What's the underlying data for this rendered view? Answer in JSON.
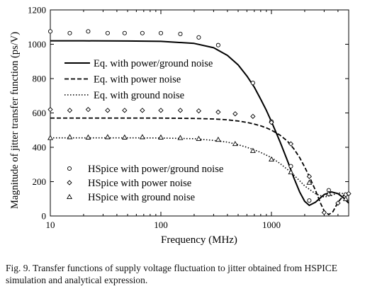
{
  "figure": {
    "caption": "Fig. 9.   Transfer functions of supply voltage fluctuation to jitter obtained from HSPICE simulation and analytical expression."
  },
  "chart_data": {
    "type": "line",
    "xlabel": "Frequency (MHz)",
    "ylabel": "Magnitude of jitter transfer function (ps/V)",
    "xscale": "log",
    "xlim": [
      10,
      5000
    ],
    "ylim": [
      0,
      1200
    ],
    "xticks": [
      10,
      100,
      1000
    ],
    "xtick_labels": [
      "10",
      "100",
      "1000"
    ],
    "yticks": [
      0,
      200,
      400,
      600,
      800,
      1000,
      1200
    ],
    "ytick_labels": [
      "0",
      "200",
      "400",
      "600",
      "800",
      "1000",
      "1200"
    ],
    "grid": false,
    "legend_lines_placement": "upper-left",
    "legend_markers_placement": "lower-left",
    "series": [
      {
        "name": "Eq. with power/ground noise",
        "style": "solid",
        "x": [
          10,
          20,
          50,
          100,
          200,
          300,
          400,
          500,
          600,
          700,
          800,
          900,
          1000,
          1200,
          1400,
          1600,
          1800,
          2000,
          2200,
          2500,
          3000,
          3500,
          4000,
          4500,
          5000
        ],
        "y": [
          1020,
          1020,
          1019,
          1017,
          1005,
          980,
          935,
          880,
          815,
          750,
          680,
          615,
          550,
          430,
          320,
          220,
          140,
          85,
          62,
          80,
          125,
          140,
          130,
          105,
          75
        ]
      },
      {
        "name": "Eq. with power noise",
        "style": "dashed",
        "x": [
          10,
          50,
          100,
          200,
          300,
          400,
          500,
          600,
          700,
          800,
          900,
          1000,
          1200,
          1400,
          1600,
          1800,
          2000,
          2200,
          2500,
          2800,
          3000,
          3300,
          3600,
          4000,
          4500,
          5000
        ],
        "y": [
          570,
          570,
          570,
          568,
          565,
          560,
          553,
          545,
          535,
          525,
          513,
          500,
          470,
          435,
          390,
          340,
          285,
          230,
          150,
          70,
          30,
          8,
          25,
          80,
          120,
          115
        ]
      },
      {
        "name": "Eq. with ground noise",
        "style": "dotted",
        "x": [
          10,
          50,
          100,
          200,
          300,
          400,
          500,
          600,
          700,
          800,
          1000,
          1200,
          1500,
          1800,
          2000,
          2500,
          3000,
          3500,
          4000,
          4500,
          5000
        ],
        "y": [
          455,
          455,
          454,
          450,
          440,
          430,
          415,
          400,
          385,
          370,
          340,
          305,
          255,
          205,
          175,
          130,
          110,
          120,
          135,
          130,
          120
        ]
      },
      {
        "name": "HSpice with power/ground noise",
        "marker": "circle",
        "x": [
          10,
          15,
          22,
          33,
          47,
          68,
          100,
          150,
          220,
          330,
          680,
          1000,
          1500,
          2200,
          3300,
          4700
        ],
        "y": [
          1075,
          1065,
          1075,
          1065,
          1065,
          1065,
          1065,
          1060,
          1040,
          995,
          775,
          550,
          290,
          90,
          150,
          125
        ]
      },
      {
        "name": "HSpice with power noise",
        "marker": "diamond",
        "x": [
          10,
          15,
          22,
          33,
          47,
          68,
          100,
          150,
          220,
          330,
          470,
          680,
          1000,
          1500,
          2200,
          3000,
          4000,
          5000
        ],
        "y": [
          620,
          615,
          620,
          615,
          615,
          615,
          615,
          615,
          612,
          605,
          595,
          580,
          545,
          420,
          230,
          20,
          75,
          130
        ]
      },
      {
        "name": "HSpice with ground noise",
        "marker": "triangle",
        "x": [
          10,
          15,
          22,
          33,
          47,
          68,
          100,
          150,
          220,
          330,
          470,
          680,
          1000,
          1500,
          2200,
          3300,
          4700
        ],
        "y": [
          455,
          460,
          458,
          460,
          458,
          460,
          458,
          455,
          450,
          445,
          420,
          380,
          330,
          255,
          195,
          130,
          100
        ]
      }
    ]
  }
}
